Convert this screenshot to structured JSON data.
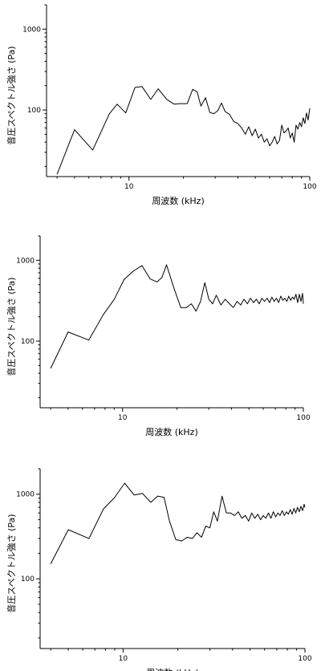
{
  "chart_data": [
    {
      "type": "line",
      "xlabel": "周波数 (kHz)",
      "ylabel": "音圧スペクトル強さ (Pa)",
      "xscale": "log",
      "yscale": "log",
      "xlim": [
        3.5,
        100
      ],
      "ylim": [
        15,
        2000
      ],
      "xticks": [
        10,
        100
      ],
      "xtick_labels": [
        "10",
        "100"
      ],
      "yticks": [
        100,
        1000
      ],
      "ytick_labels": [
        "100",
        "1000"
      ],
      "grid": false,
      "series": [
        {
          "x": [
            4.0,
            5.0,
            6.3,
            7.8,
            8.6,
            9.6,
            10.8,
            11.8,
            13.2,
            14.5,
            16.2,
            17.8,
            19.2,
            21.0,
            22.5,
            23.8,
            25.0,
            26.5,
            28.0,
            29.5,
            31.0,
            32.5,
            34.0,
            36.0,
            38.0,
            40.0,
            42.0,
            44.0,
            46.0,
            48.0,
            50.0,
            52.0,
            54.0,
            56.0,
            58.0,
            60.0,
            62.0,
            64.0,
            66.0,
            68.0,
            70.0,
            72.0,
            74.0,
            76.0,
            78.0,
            80.0,
            82.0,
            84.0,
            86.0,
            88.0,
            90.0,
            92.0,
            94.0,
            96.0,
            98.0,
            100.0
          ],
          "y": [
            16,
            57,
            32,
            90,
            118,
            92,
            190,
            195,
            135,
            183,
            135,
            118,
            120,
            120,
            180,
            168,
            112,
            142,
            93,
            90,
            98,
            122,
            96,
            88,
            72,
            68,
            60,
            50,
            62,
            48,
            58,
            45,
            50,
            40,
            44,
            36,
            40,
            47,
            38,
            42,
            65,
            52,
            55,
            60,
            45,
            52,
            40,
            65,
            58,
            70,
            62,
            80,
            68,
            92,
            75,
            105
          ]
        }
      ]
    },
    {
      "type": "line",
      "xlabel": "周波数 (kHz)",
      "ylabel": "音圧スペクトル強さ (Pa)",
      "xscale": "log",
      "yscale": "log",
      "xlim": [
        3.5,
        100
      ],
      "ylim": [
        15,
        2000
      ],
      "xticks": [
        10,
        100
      ],
      "xtick_labels": [
        "10",
        "100"
      ],
      "yticks": [
        100,
        1000
      ],
      "ytick_labels": [
        "100",
        "1000"
      ],
      "grid": false,
      "series": [
        {
          "x": [
            4.0,
            5.0,
            6.5,
            7.8,
            9.0,
            10.2,
            11.5,
            12.8,
            14.2,
            15.5,
            16.5,
            17.5,
            19.2,
            21.0,
            22.5,
            24.0,
            25.5,
            27.0,
            28.5,
            30.0,
            31.5,
            33.0,
            35.0,
            37.0,
            39.0,
            41.0,
            43.0,
            45.0,
            47.0,
            49.0,
            51.0,
            53.0,
            55.0,
            57.0,
            59.0,
            61.0,
            63.0,
            65.0,
            67.0,
            69.0,
            71.0,
            73.0,
            75.0,
            77.0,
            79.0,
            81.0,
            83.0,
            85.0,
            87.0,
            89.0,
            91.0,
            93.0,
            95.0,
            97.0,
            99.0,
            100.0
          ],
          "y": [
            46,
            130,
            103,
            210,
            330,
            580,
            740,
            860,
            590,
            540,
            610,
            880,
            460,
            260,
            260,
            290,
            235,
            310,
            530,
            330,
            290,
            370,
            280,
            330,
            290,
            260,
            310,
            280,
            330,
            290,
            340,
            300,
            330,
            290,
            340,
            310,
            340,
            300,
            350,
            310,
            340,
            300,
            360,
            320,
            340,
            310,
            360,
            320,
            350,
            330,
            380,
            300,
            380,
            310,
            390,
            290
          ]
        }
      ]
    },
    {
      "type": "line",
      "xlabel": "周波数 (kHz)",
      "ylabel": "音圧スペクトル強さ (Pa)",
      "xscale": "log",
      "yscale": "log",
      "xlim": [
        3.5,
        100
      ],
      "ylim": [
        15,
        2000
      ],
      "xticks": [
        10,
        100
      ],
      "xtick_labels": [
        "10",
        "100"
      ],
      "yticks": [
        100,
        1000
      ],
      "ytick_labels": [
        "100",
        "1000"
      ],
      "grid": false,
      "series": [
        {
          "x": [
            4.0,
            5.0,
            6.5,
            7.8,
            9.0,
            10.2,
            11.5,
            12.8,
            14.2,
            15.5,
            16.8,
            18.0,
            19.5,
            21.0,
            22.5,
            24.0,
            25.5,
            27.0,
            28.5,
            30.0,
            31.5,
            33.0,
            35.0,
            37.0,
            39.0,
            41.0,
            43.0,
            45.0,
            47.0,
            49.0,
            51.0,
            53.0,
            55.0,
            57.0,
            59.0,
            61.0,
            63.0,
            65.0,
            67.0,
            69.0,
            71.0,
            73.0,
            75.0,
            77.0,
            79.0,
            81.0,
            83.0,
            85.0,
            87.0,
            89.0,
            91.0,
            93.0,
            95.0,
            97.0,
            99.0,
            100.0
          ],
          "y": [
            150,
            380,
            300,
            670,
            920,
            1350,
            980,
            1020,
            800,
            950,
            920,
            480,
            290,
            280,
            310,
            300,
            350,
            310,
            420,
            400,
            620,
            480,
            950,
            600,
            600,
            560,
            620,
            520,
            560,
            480,
            600,
            520,
            580,
            500,
            560,
            520,
            600,
            520,
            620,
            540,
            600,
            560,
            640,
            560,
            620,
            580,
            660,
            580,
            680,
            600,
            700,
            620,
            720,
            640,
            760,
            700
          ]
        }
      ]
    }
  ]
}
